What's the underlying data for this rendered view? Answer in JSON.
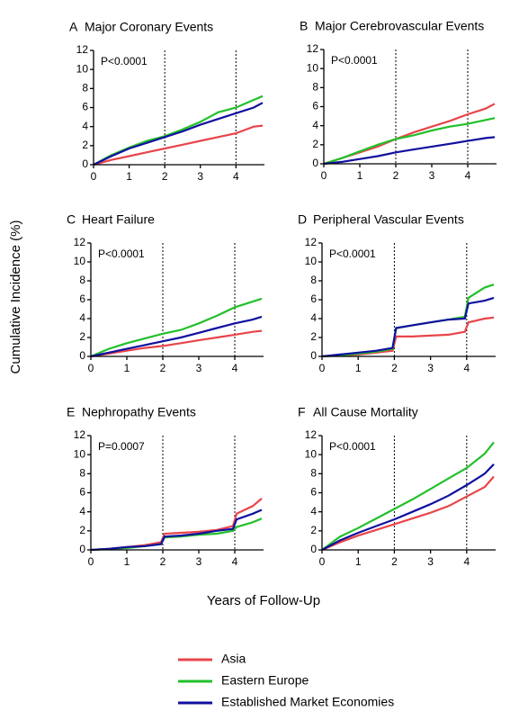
{
  "ylabel": "Cumulative  Incidence  (%)",
  "xlabel": "Years of Follow-Up",
  "chart_data": [
    {
      "type": "line",
      "panel": "A",
      "title": "Major Coronary Events",
      "annotation": "P<0.0001",
      "x": [
        0,
        0.5,
        1,
        1.5,
        2,
        2.5,
        3,
        3.5,
        4,
        4.5,
        4.75
      ],
      "series": [
        {
          "name": "Asia",
          "color": "#e8454a",
          "values": [
            0,
            0.5,
            0.9,
            1.3,
            1.7,
            2.1,
            2.5,
            2.9,
            3.3,
            4.0,
            4.1
          ]
        },
        {
          "name": "Eastern Europe",
          "color": "#22c02a",
          "values": [
            0,
            1.0,
            1.8,
            2.5,
            3.0,
            3.7,
            4.5,
            5.5,
            6.0,
            6.8,
            7.2
          ]
        },
        {
          "name": "Established Market Economies",
          "color": "#1010a0",
          "values": [
            0,
            0.9,
            1.7,
            2.3,
            2.9,
            3.5,
            4.2,
            4.8,
            5.4,
            6.0,
            6.5
          ]
        }
      ],
      "xlim": [
        0,
        4.8
      ],
      "xticks": [
        0,
        1,
        2,
        3,
        4
      ],
      "ylim": [
        0,
        12
      ],
      "yticks": [
        0,
        2,
        4,
        6,
        8,
        10,
        12
      ],
      "vlines": [
        2,
        4
      ]
    },
    {
      "type": "line",
      "panel": "B",
      "title": "Major Cerebrovascular Events",
      "annotation": "P<0.0001",
      "x": [
        0,
        0.5,
        1,
        1.5,
        2,
        2.5,
        3,
        3.5,
        4,
        4.5,
        4.75
      ],
      "series": [
        {
          "name": "Asia",
          "color": "#e8454a",
          "values": [
            0,
            0.6,
            1.2,
            1.8,
            2.6,
            3.3,
            3.9,
            4.5,
            5.2,
            5.8,
            6.3
          ]
        },
        {
          "name": "Eastern Europe",
          "color": "#22c02a",
          "values": [
            0,
            0.6,
            1.3,
            2.0,
            2.6,
            3.0,
            3.5,
            3.9,
            4.2,
            4.6,
            4.8
          ]
        },
        {
          "name": "Established Market Economies",
          "color": "#1010a0",
          "values": [
            0,
            0.2,
            0.5,
            0.8,
            1.2,
            1.5,
            1.8,
            2.1,
            2.4,
            2.7,
            2.8
          ]
        }
      ],
      "xlim": [
        0,
        4.8
      ],
      "xticks": [
        0,
        1,
        2,
        3,
        4
      ],
      "ylim": [
        0,
        12
      ],
      "yticks": [
        0,
        2,
        4,
        6,
        8,
        10,
        12
      ],
      "vlines": [
        2,
        4
      ]
    },
    {
      "type": "line",
      "panel": "C",
      "title": "Heart Failure",
      "annotation": "P<0.0001",
      "x": [
        0,
        0.5,
        1,
        1.5,
        2,
        2.5,
        3,
        3.5,
        4,
        4.5,
        4.75
      ],
      "series": [
        {
          "name": "Asia",
          "color": "#e8454a",
          "values": [
            0,
            0.3,
            0.6,
            0.9,
            1.1,
            1.4,
            1.7,
            2.0,
            2.3,
            2.6,
            2.7
          ]
        },
        {
          "name": "Eastern Europe",
          "color": "#22c02a",
          "values": [
            0,
            0.8,
            1.4,
            1.9,
            2.4,
            2.8,
            3.5,
            4.3,
            5.2,
            5.8,
            6.1
          ]
        },
        {
          "name": "Established Market Economies",
          "color": "#1010a0",
          "values": [
            0,
            0.4,
            0.8,
            1.2,
            1.6,
            2.0,
            2.5,
            3.0,
            3.5,
            3.9,
            4.2
          ]
        }
      ],
      "xlim": [
        0,
        4.8
      ],
      "xticks": [
        0,
        1,
        2,
        3,
        4
      ],
      "ylim": [
        0,
        12
      ],
      "yticks": [
        0,
        2,
        4,
        6,
        8,
        10,
        12
      ],
      "vlines": [
        2,
        4
      ]
    },
    {
      "type": "line",
      "panel": "D",
      "title": "Peripheral Vascular Events",
      "annotation": "P<0.0001",
      "x": [
        0,
        0.5,
        1,
        1.5,
        1.95,
        2.05,
        2.5,
        3,
        3.5,
        3.95,
        4.05,
        4.5,
        4.75
      ],
      "series": [
        {
          "name": "Asia",
          "color": "#e8454a",
          "values": [
            0,
            0.1,
            0.2,
            0.4,
            0.6,
            2.1,
            2.1,
            2.2,
            2.3,
            2.6,
            3.6,
            4.0,
            4.1
          ]
        },
        {
          "name": "Eastern Europe",
          "color": "#22c02a",
          "values": [
            0,
            0.1,
            0.3,
            0.5,
            0.8,
            3.0,
            3.3,
            3.6,
            3.9,
            4.2,
            6.2,
            7.3,
            7.6
          ]
        },
        {
          "name": "Established Market Economies",
          "color": "#1010a0",
          "values": [
            0,
            0.2,
            0.4,
            0.6,
            0.9,
            3.0,
            3.3,
            3.6,
            3.9,
            4.0,
            5.6,
            5.9,
            6.2
          ]
        }
      ],
      "xlim": [
        0,
        4.8
      ],
      "xticks": [
        0,
        1,
        2,
        3,
        4
      ],
      "ylim": [
        0,
        12
      ],
      "yticks": [
        0,
        2,
        4,
        6,
        8,
        10,
        12
      ],
      "vlines": [
        2,
        4
      ]
    },
    {
      "type": "line",
      "panel": "E",
      "title": "Nephropathy Events",
      "annotation": "P=0.0007",
      "x": [
        0,
        0.5,
        1,
        1.5,
        1.95,
        2.05,
        2.5,
        3,
        3.5,
        3.95,
        4.05,
        4.5,
        4.75
      ],
      "series": [
        {
          "name": "Asia",
          "color": "#e8454a",
          "values": [
            0,
            0.1,
            0.3,
            0.5,
            0.8,
            1.7,
            1.8,
            1.9,
            2.1,
            2.5,
            3.8,
            4.6,
            5.4
          ]
        },
        {
          "name": "Eastern Europe",
          "color": "#22c02a",
          "values": [
            0,
            0.1,
            0.2,
            0.4,
            0.6,
            1.3,
            1.4,
            1.6,
            1.7,
            2.0,
            2.4,
            2.9,
            3.3
          ]
        },
        {
          "name": "Established Market Economies",
          "color": "#1010a0",
          "values": [
            0,
            0.1,
            0.3,
            0.4,
            0.6,
            1.4,
            1.5,
            1.7,
            2.0,
            2.2,
            3.2,
            3.8,
            4.2
          ]
        }
      ],
      "xlim": [
        0,
        4.8
      ],
      "xticks": [
        0,
        1,
        2,
        3,
        4
      ],
      "ylim": [
        0,
        12
      ],
      "yticks": [
        0,
        2,
        4,
        6,
        8,
        10,
        12
      ],
      "vlines": [
        2,
        4
      ]
    },
    {
      "type": "line",
      "panel": "F",
      "title": "All Cause Mortality",
      "annotation": "P<0.0001",
      "x": [
        0,
        0.5,
        1,
        1.5,
        2,
        2.5,
        3,
        3.5,
        4,
        4.5,
        4.75
      ],
      "series": [
        {
          "name": "Asia",
          "color": "#e8454a",
          "values": [
            0,
            0.8,
            1.5,
            2.1,
            2.7,
            3.3,
            3.9,
            4.6,
            5.6,
            6.6,
            7.7
          ]
        },
        {
          "name": "Eastern Europe",
          "color": "#22c02a",
          "values": [
            0,
            1.4,
            2.3,
            3.3,
            4.3,
            5.3,
            6.4,
            7.5,
            8.6,
            10.1,
            11.3
          ]
        },
        {
          "name": "Established Market Economies",
          "color": "#1010a0",
          "values": [
            0,
            1.0,
            1.8,
            2.5,
            3.2,
            4.0,
            4.8,
            5.7,
            6.8,
            8.0,
            9.0
          ]
        }
      ],
      "xlim": [
        0,
        4.8
      ],
      "xticks": [
        0,
        1,
        2,
        3,
        4
      ],
      "ylim": [
        0,
        12
      ],
      "yticks": [
        0,
        2,
        4,
        6,
        8,
        10,
        12
      ],
      "vlines": [
        2,
        4
      ]
    }
  ]
}
